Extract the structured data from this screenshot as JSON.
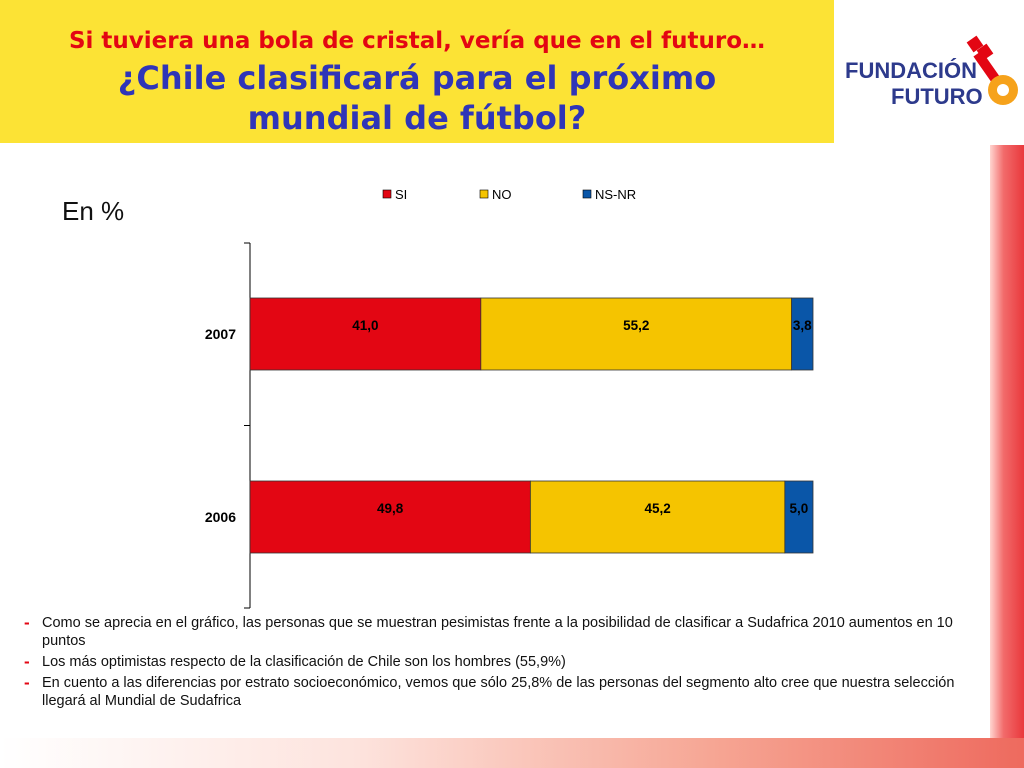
{
  "header": {
    "line1": "Si tuviera una bola de cristal, vería que en el futuro…",
    "line2a": "¿Chile clasificará para el próximo",
    "line2b": "mundial de fútbol?"
  },
  "logo": {
    "line1": "FUNDACIÓN",
    "line2": "FUTURO"
  },
  "unit_label": "En %",
  "colors": {
    "si": "#e30613",
    "no": "#f5c400",
    "nsnr": "#0a56a8",
    "title_red": "#e30613",
    "title_blue": "#2f35b8",
    "yellow_box": "#fce335"
  },
  "chart_data": {
    "type": "bar",
    "orientation": "horizontal",
    "stacked": true,
    "categories": [
      "2007",
      "2006"
    ],
    "series": [
      {
        "name": "SI",
        "values": [
          41.0,
          49.8
        ],
        "labels": [
          "41,0",
          "49,8"
        ],
        "color": "#e30613"
      },
      {
        "name": "NO",
        "values": [
          55.2,
          45.2
        ],
        "labels": [
          "55,2",
          "45,2"
        ],
        "color": "#f5c400"
      },
      {
        "name": "NS-NR",
        "values": [
          3.8,
          5.0
        ],
        "labels": [
          "3,8",
          "5,0"
        ],
        "color": "#0a56a8"
      }
    ],
    "xlim": [
      0,
      100
    ],
    "legend_position": "top",
    "grid": false
  },
  "bullets": [
    "Como se aprecia en el gráfico, las personas que se muestran pesimistas frente a la posibilidad de clasificar a Sudafrica 2010 aumentos en 10 puntos",
    "Los más optimistas respecto de la clasificación de Chile son los hombres (55,9%)",
    "En cuento a las diferencias por estrato socioeconómico, vemos que sólo 25,8% de las personas del segmento alto cree que nuestra selección llegará al Mundial de Sudafrica"
  ]
}
